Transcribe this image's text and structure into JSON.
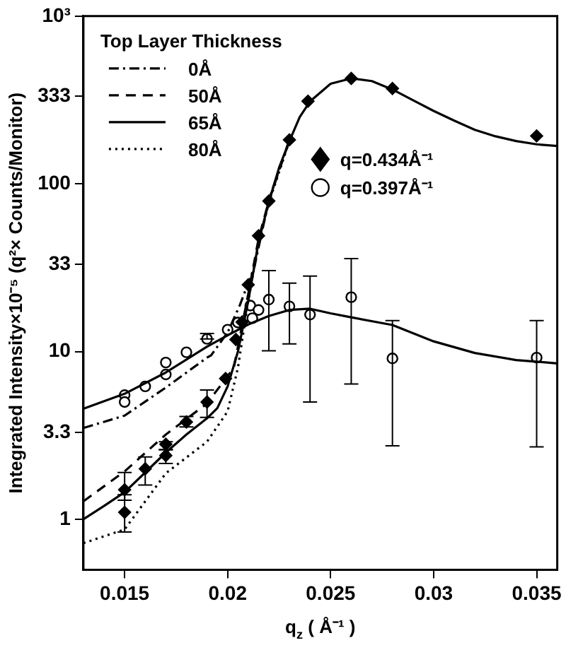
{
  "chart_data": {
    "type": "scatter",
    "xlabel": "q$_{z}$ ( Å⁻¹ )",
    "ylabel": "Integrated Intensity×10⁻⁵ (q²× Counts/Monitor)",
    "legend_title": "Top Layer Thickness",
    "legend": "top left",
    "log": true,
    "grid": false,
    "xlim": [
      0.013,
      0.036
    ],
    "xticks": [
      0.015,
      0.02,
      0.025,
      0.03,
      0.035
    ],
    "ylim": [
      0.5,
      1000
    ],
    "yticks": [
      1,
      3.3,
      10,
      33,
      100,
      333,
      {
        "value": 1000,
        "label": "10³"
      }
    ],
    "series": [
      {
        "name": "0Å",
        "type": "line",
        "color": "#000000",
        "line_style": "dashdot",
        "marker": "none",
        "x": [
          0.013,
          0.015,
          0.017,
          0.019,
          0.0192,
          0.02,
          0.0206,
          0.0213,
          0.022,
          0.023
        ],
        "values": [
          3.5,
          4.15,
          6.1,
          9.2,
          9.5,
          13,
          19,
          32,
          80,
          183
        ]
      },
      {
        "name": "50Å",
        "type": "line",
        "color": "#000000",
        "line_style": "dashed",
        "marker": "none",
        "x": [
          0.013,
          0.015,
          0.017,
          0.019,
          0.0203,
          0.021,
          0.0215,
          0.022,
          0.023
        ],
        "values": [
          1.28,
          1.93,
          3.2,
          4.9,
          8,
          22,
          47,
          79,
          182
        ]
      },
      {
        "name": "65Å",
        "type": "line",
        "color": "#000000",
        "line_style": "solid",
        "marker": "none",
        "x": [
          0.013,
          0.014,
          0.015,
          0.016,
          0.017,
          0.018,
          0.019,
          0.0195,
          0.02,
          0.0205,
          0.021,
          0.0215,
          0.022,
          0.0225,
          0.023,
          0.0235,
          0.024,
          0.025,
          0.026,
          0.027,
          0.028,
          0.029,
          0.03,
          0.031,
          0.032,
          0.033,
          0.034,
          0.035,
          0.036
        ],
        "values": [
          1,
          1.2,
          1.45,
          1.9,
          2.5,
          3.2,
          4,
          4.6,
          6.2,
          10,
          20,
          45,
          78,
          125,
          180,
          250,
          310,
          395,
          425,
          410,
          365,
          315,
          272,
          238,
          210,
          192,
          180,
          172,
          168
        ]
      },
      {
        "name": "80Å",
        "type": "line",
        "color": "#000000",
        "line_style": "dotted",
        "marker": "none",
        "x": [
          0.013,
          0.015,
          0.017,
          0.019,
          0.02,
          0.0205,
          0.021,
          0.0215,
          0.022,
          0.023
        ],
        "values": [
          0.72,
          0.87,
          1.88,
          2.9,
          4.4,
          8,
          20,
          44,
          77,
          180
        ]
      },
      {
        "type": "line",
        "color": "#000000",
        "line_style": "solid",
        "marker": "none",
        "x": [
          0.013,
          0.015,
          0.017,
          0.019,
          0.02,
          0.021,
          0.022,
          0.023,
          0.024,
          0.025,
          0.026,
          0.028,
          0.03,
          0.032,
          0.034,
          0.036
        ],
        "values": [
          4.56,
          5.6,
          7.5,
          10.7,
          12.5,
          14.5,
          16.3,
          17.7,
          18,
          16.9,
          16,
          14.4,
          11.5,
          9.8,
          8.9,
          8.5
        ]
      },
      {
        "name": "q=0.434Å⁻¹",
        "type": "scatter",
        "color": "#000000",
        "marker": "diamond",
        "x": [
          0.015,
          0.015,
          0.016,
          0.017,
          0.017,
          0.018,
          0.019,
          0.0199,
          0.0204,
          0.0207,
          0.021,
          0.0215,
          0.022,
          0.023,
          0.0239,
          0.026,
          0.028,
          0.035
        ],
        "values": [
          1.5,
          1.1,
          2,
          2.8,
          2.4,
          3.8,
          5,
          6.9,
          11.8,
          15,
          25,
          49,
          79,
          183,
          311,
          425,
          370,
          193
        ],
        "errors": [
          [
            1.3,
            1.9
          ],
          [
            0.84,
            1.4
          ],
          [
            1.6,
            2.35
          ],
          [
            2.6,
            2.9
          ],
          [
            2.15,
            2.6
          ],
          [
            3.55,
            4.1
          ],
          [
            4.05,
            5.9
          ],
          null,
          null,
          null,
          null,
          null,
          null,
          null,
          null,
          null,
          null,
          null
        ]
      },
      {
        "name": "q=0.397Å⁻¹",
        "type": "scatter",
        "color": "#000000",
        "marker": "circle",
        "x": [
          0.015,
          0.015,
          0.016,
          0.017,
          0.017,
          0.018,
          0.019,
          0.02,
          0.0205,
          0.0211,
          0.0212,
          0.0215,
          0.022,
          0.023,
          0.024,
          0.026,
          0.028,
          0.035
        ],
        "values": [
          5.5,
          5,
          6.2,
          8.6,
          7.3,
          9.9,
          11.9,
          13.5,
          14.9,
          18.8,
          15.8,
          17.7,
          20.4,
          18.6,
          16.6,
          21.1,
          9.1,
          9.2
        ],
        "errors": [
          null,
          null,
          null,
          null,
          null,
          null,
          [
            11.9,
            12.8
          ],
          null,
          null,
          null,
          null,
          null,
          [
            10.1,
            30.4
          ],
          [
            11.1,
            25.6
          ],
          [
            5,
            28.2
          ],
          [
            6.4,
            35.8
          ],
          [
            2.74,
            15.3
          ],
          [
            2.7,
            15.3
          ]
        ]
      }
    ]
  }
}
